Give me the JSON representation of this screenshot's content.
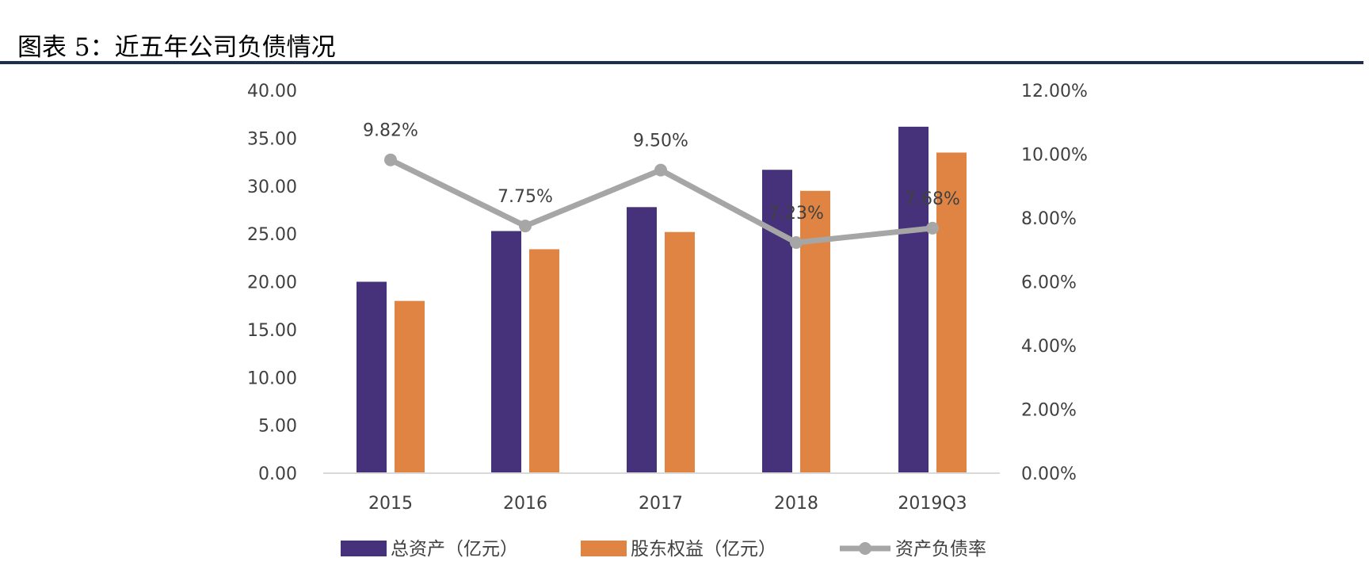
{
  "title": "图表 5：近五年公司负债情况",
  "colors": {
    "total_assets": "#46327a",
    "equity": "#e08443",
    "ratio": "#a6a6a6",
    "rule": "#1f2d4e"
  },
  "chart_data": {
    "type": "bar",
    "title": "图表 5：近五年公司负债情况",
    "categories": [
      "2015",
      "2016",
      "2017",
      "2018",
      "2019Q3"
    ],
    "series": [
      {
        "name": "总资产（亿元）",
        "type": "bar",
        "axis": "left",
        "values": [
          20.0,
          25.3,
          27.8,
          31.7,
          36.2
        ]
      },
      {
        "name": "股东权益（亿元）",
        "type": "bar",
        "axis": "left",
        "values": [
          18.0,
          23.4,
          25.2,
          29.5,
          33.5
        ]
      },
      {
        "name": "资产负债率",
        "type": "line",
        "axis": "right",
        "values": [
          9.82,
          7.75,
          9.5,
          7.23,
          7.68
        ],
        "labels": [
          "9.82%",
          "7.75%",
          "9.50%",
          "7.23%",
          "7.68%"
        ]
      }
    ],
    "y_left": {
      "range": [
        0,
        40
      ],
      "ticks": [
        "0.00",
        "5.00",
        "10.00",
        "15.00",
        "20.00",
        "25.00",
        "30.00",
        "35.00",
        "40.00"
      ]
    },
    "y_right": {
      "range": [
        0,
        12
      ],
      "ticks": [
        "0.00%",
        "2.00%",
        "4.00%",
        "6.00%",
        "8.00%",
        "10.00%",
        "12.00%"
      ]
    },
    "grid": false,
    "legend": "bottom"
  }
}
